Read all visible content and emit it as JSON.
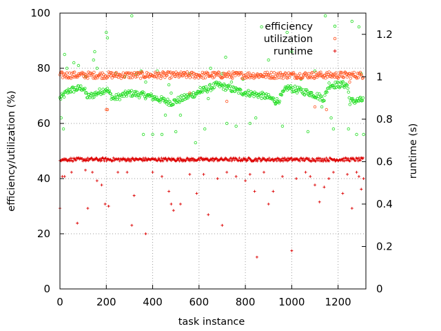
{
  "chart_data": {
    "type": "scatter",
    "xlabel": "task instance",
    "ylabel": "efficiency/utilization (%)",
    "y2label": "runtime (s)",
    "xlim": [
      0,
      1320
    ],
    "ylim": [
      0,
      100
    ],
    "y2lim": [
      0,
      1.3
    ],
    "xticks": [
      0,
      200,
      400,
      600,
      800,
      1000,
      1200
    ],
    "yticks": [
      0,
      20,
      40,
      60,
      80,
      100
    ],
    "y2ticks": [
      0,
      0.2,
      0.4,
      0.6,
      0.8,
      1,
      1.2
    ],
    "grid": true,
    "legend_position": "top-right",
    "series": [
      {
        "name": "efficiency",
        "axis": "left",
        "marker": "open-circle",
        "color": "#22dd22",
        "baseline": [
          [
            0,
            69
          ],
          [
            40,
            72
          ],
          [
            100,
            73
          ],
          [
            120,
            69.5
          ],
          [
            200,
            72.5
          ],
          [
            230,
            69
          ],
          [
            300,
            71
          ],
          [
            380,
            70
          ],
          [
            480,
            67.5
          ],
          [
            560,
            70
          ],
          [
            680,
            74
          ],
          [
            780,
            71.5
          ],
          [
            880,
            70
          ],
          [
            940,
            68
          ],
          [
            980,
            73
          ],
          [
            1080,
            71
          ],
          [
            1140,
            69
          ],
          [
            1160,
            74
          ],
          [
            1240,
            74
          ],
          [
            1250,
            68
          ],
          [
            1310,
            68.5
          ]
        ],
        "spread": 1.2,
        "outliers": [
          [
            5,
            62
          ],
          [
            15,
            58
          ],
          [
            20,
            85
          ],
          [
            30,
            80
          ],
          [
            60,
            82
          ],
          [
            80,
            81
          ],
          [
            110,
            77
          ],
          [
            145,
            83
          ],
          [
            150,
            86
          ],
          [
            160,
            80
          ],
          [
            200,
            93
          ],
          [
            205,
            91
          ],
          [
            240,
            78
          ],
          [
            280,
            77
          ],
          [
            310,
            99
          ],
          [
            330,
            78
          ],
          [
            350,
            79
          ],
          [
            360,
            56
          ],
          [
            370,
            75
          ],
          [
            400,
            56
          ],
          [
            420,
            79
          ],
          [
            440,
            56
          ],
          [
            455,
            63
          ],
          [
            470,
            74
          ],
          [
            480,
            71
          ],
          [
            500,
            57
          ],
          [
            520,
            63
          ],
          [
            560,
            78
          ],
          [
            585,
            53
          ],
          [
            605,
            73
          ],
          [
            625,
            58
          ],
          [
            640,
            69
          ],
          [
            650,
            80
          ],
          [
            700,
            78
          ],
          [
            715,
            84
          ],
          [
            720,
            60
          ],
          [
            740,
            75
          ],
          [
            760,
            59
          ],
          [
            790,
            76
          ],
          [
            820,
            60
          ],
          [
            845,
            62
          ],
          [
            870,
            95
          ],
          [
            900,
            83
          ],
          [
            930,
            67
          ],
          [
            960,
            59
          ],
          [
            980,
            93
          ],
          [
            1000,
            86
          ],
          [
            1040,
            76
          ],
          [
            1070,
            57
          ],
          [
            1100,
            79
          ],
          [
            1130,
            66
          ],
          [
            1145,
            99
          ],
          [
            1170,
            62
          ],
          [
            1180,
            58
          ],
          [
            1220,
            75
          ],
          [
            1245,
            58
          ],
          [
            1260,
            97
          ],
          [
            1280,
            56
          ],
          [
            1290,
            95
          ],
          [
            1300,
            78
          ],
          [
            1310,
            56
          ]
        ]
      },
      {
        "name": "utilization",
        "axis": "left",
        "marker": "open-circle",
        "color": "#ff5522",
        "baseline": [
          [
            0,
            77.5
          ],
          [
            1310,
            77.5
          ]
        ],
        "spread": 1.2,
        "outliers": [
          [
            200,
            65
          ],
          [
            205,
            65
          ],
          [
            560,
            71
          ],
          [
            720,
            68
          ],
          [
            1100,
            66
          ],
          [
            1150,
            65
          ],
          [
            1250,
            75
          ]
        ]
      },
      {
        "name": "runtime",
        "axis": "right",
        "marker": "plus",
        "color": "#dd0000",
        "baseline": [
          [
            0,
            0.61
          ],
          [
            1310,
            0.61
          ]
        ],
        "spread": 0.008,
        "outliers": [
          [
            0,
            0.38
          ],
          [
            10,
            0.53
          ],
          [
            20,
            0.53
          ],
          [
            50,
            0.55
          ],
          [
            75,
            0.31
          ],
          [
            110,
            0.56
          ],
          [
            120,
            0.38
          ],
          [
            140,
            0.55
          ],
          [
            160,
            0.51
          ],
          [
            180,
            0.49
          ],
          [
            195,
            0.4
          ],
          [
            210,
            0.39
          ],
          [
            250,
            0.55
          ],
          [
            290,
            0.55
          ],
          [
            310,
            0.3
          ],
          [
            320,
            0.44
          ],
          [
            370,
            0.26
          ],
          [
            400,
            0.55
          ],
          [
            440,
            0.53
          ],
          [
            470,
            0.46
          ],
          [
            480,
            0.4
          ],
          [
            490,
            0.37
          ],
          [
            520,
            0.4
          ],
          [
            560,
            0.54
          ],
          [
            590,
            0.45
          ],
          [
            620,
            0.54
          ],
          [
            640,
            0.35
          ],
          [
            680,
            0.52
          ],
          [
            700,
            0.3
          ],
          [
            720,
            0.55
          ],
          [
            760,
            0.53
          ],
          [
            800,
            0.51
          ],
          [
            820,
            0.54
          ],
          [
            840,
            0.46
          ],
          [
            850,
            0.15
          ],
          [
            880,
            0.55
          ],
          [
            900,
            0.4
          ],
          [
            920,
            0.46
          ],
          [
            960,
            0.53
          ],
          [
            1000,
            0.18
          ],
          [
            1020,
            0.52
          ],
          [
            1060,
            0.55
          ],
          [
            1080,
            0.53
          ],
          [
            1100,
            0.49
          ],
          [
            1120,
            0.41
          ],
          [
            1140,
            0.48
          ],
          [
            1160,
            0.52
          ],
          [
            1180,
            0.55
          ],
          [
            1220,
            0.45
          ],
          [
            1240,
            0.54
          ],
          [
            1260,
            0.38
          ],
          [
            1280,
            0.55
          ],
          [
            1290,
            0.53
          ],
          [
            1300,
            0.47
          ],
          [
            1310,
            0.52
          ]
        ]
      }
    ]
  }
}
